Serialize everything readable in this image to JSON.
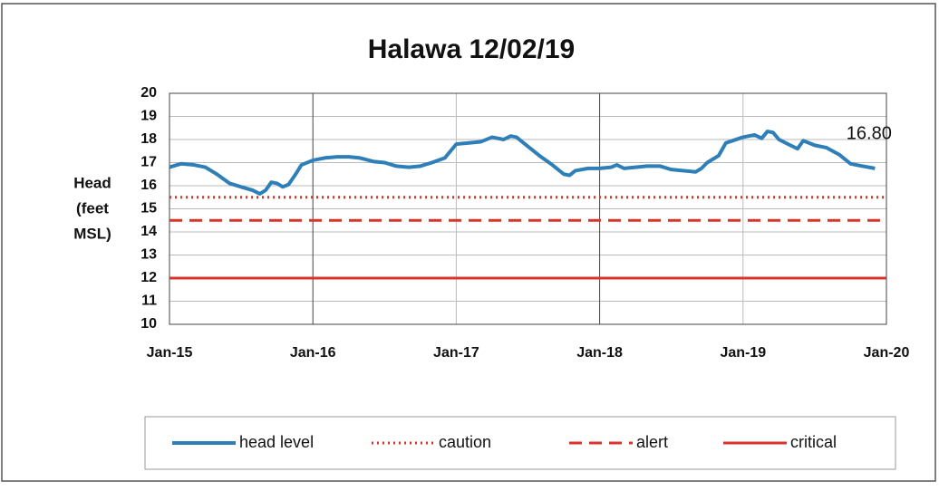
{
  "chart_data": {
    "type": "line",
    "title": "Halawa 12/02/19",
    "y_label": [
      "Head",
      "(feet",
      "MSL)"
    ],
    "annotations": [
      {
        "text": "16.80"
      }
    ],
    "xlim": [
      2015,
      2020
    ],
    "xticks": [
      {
        "value": 2015,
        "label": "Jan-15"
      },
      {
        "value": 2016,
        "label": "Jan-16"
      },
      {
        "value": 2017,
        "label": "Jan-17"
      },
      {
        "value": 2018,
        "label": "Jan-18"
      },
      {
        "value": 2019,
        "label": "Jan-19"
      },
      {
        "value": 2020,
        "label": "Jan-20"
      }
    ],
    "ylim": [
      10,
      20
    ],
    "yticks": [
      10,
      11,
      12,
      13,
      14,
      15,
      16,
      17,
      18,
      19,
      20
    ],
    "grid": true,
    "legend": "bottom",
    "series": [
      {
        "name": "head level",
        "color": "#2e7fb8",
        "dash": "solid",
        "x": [
          2015.0,
          2015.08,
          2015.17,
          2015.25,
          2015.33,
          2015.42,
          2015.5,
          2015.58,
          2015.63,
          2015.67,
          2015.71,
          2015.75,
          2015.79,
          2015.83,
          2015.88,
          2015.92,
          2016.0,
          2016.08,
          2016.17,
          2016.25,
          2016.33,
          2016.42,
          2016.5,
          2016.58,
          2016.67,
          2016.75,
          2016.83,
          2016.92,
          2017.0,
          2017.08,
          2017.17,
          2017.25,
          2017.33,
          2017.38,
          2017.42,
          2017.5,
          2017.58,
          2017.67,
          2017.75,
          2017.79,
          2017.83,
          2017.92,
          2018.0,
          2018.08,
          2018.12,
          2018.17,
          2018.25,
          2018.33,
          2018.42,
          2018.5,
          2018.58,
          2018.67,
          2018.71,
          2018.75,
          2018.83,
          2018.88,
          2019.0,
          2019.08,
          2019.13,
          2019.17,
          2019.21,
          2019.25,
          2019.33,
          2019.38,
          2019.42,
          2019.5,
          2019.58,
          2019.67,
          2019.75,
          2019.83,
          2019.92
        ],
        "values": [
          16.8,
          16.95,
          16.9,
          16.8,
          16.5,
          16.1,
          15.95,
          15.8,
          15.65,
          15.8,
          16.15,
          16.1,
          15.95,
          16.05,
          16.5,
          16.9,
          17.1,
          17.2,
          17.25,
          17.25,
          17.2,
          17.05,
          17.0,
          16.85,
          16.8,
          16.85,
          17.0,
          17.2,
          17.8,
          17.85,
          17.9,
          18.1,
          18.0,
          18.15,
          18.1,
          17.7,
          17.3,
          16.9,
          16.5,
          16.45,
          16.65,
          16.75,
          16.75,
          16.8,
          16.9,
          16.75,
          16.8,
          16.85,
          16.85,
          16.7,
          16.65,
          16.6,
          16.75,
          17.0,
          17.3,
          17.85,
          18.1,
          18.2,
          18.05,
          18.35,
          18.3,
          18.0,
          17.75,
          17.6,
          17.95,
          17.75,
          17.65,
          17.35,
          16.95,
          16.85,
          16.75
        ]
      },
      {
        "name": "caution",
        "color": "#d9342b",
        "dash": "dotted",
        "x": [
          2015,
          2020
        ],
        "values": [
          15.5,
          15.5
        ]
      },
      {
        "name": "alert",
        "color": "#d9342b",
        "dash": "dashed",
        "x": [
          2015,
          2020
        ],
        "values": [
          14.5,
          14.5
        ]
      },
      {
        "name": "critical",
        "color": "#d9342b",
        "dash": "solid",
        "x": [
          2015,
          2020
        ],
        "values": [
          12,
          12
        ]
      }
    ]
  }
}
